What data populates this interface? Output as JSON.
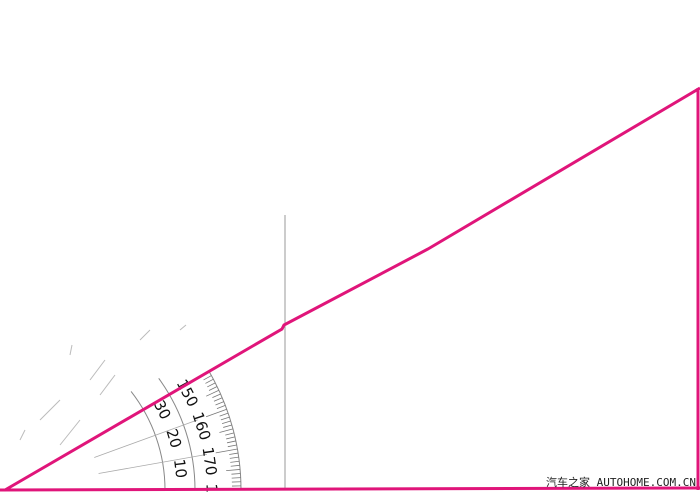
{
  "protractor": {
    "inner_labels": [
      "10",
      "20",
      "30"
    ],
    "outer_labels": [
      "150",
      "160",
      "170",
      "1"
    ],
    "scale_color": "#888888"
  },
  "lines": {
    "color": "#e0157a",
    "guide_color": "#999999"
  },
  "watermark": "汽车之家 AUTOHOME.COM.CN"
}
